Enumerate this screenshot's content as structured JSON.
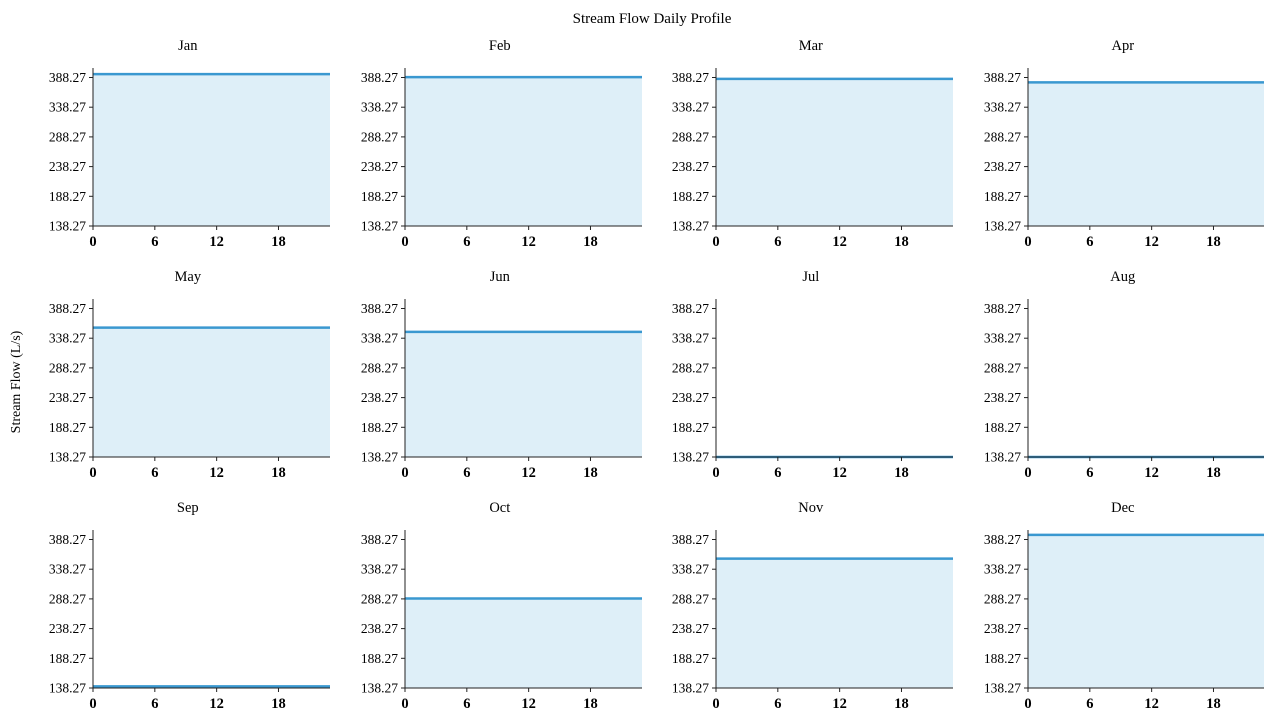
{
  "chart_data": {
    "type": "area",
    "title": "Stream Flow Daily Profile",
    "ylabel": "Stream Flow (L/s)",
    "xlabel": "",
    "x_ticks": [
      0,
      6,
      12,
      18
    ],
    "xlim": [
      0,
      23
    ],
    "y_ticks": [
      "138.27",
      "188.27",
      "238.27",
      "288.27",
      "338.27",
      "388.27"
    ],
    "ylim": [
      138.27,
      400
    ],
    "grid": false,
    "line_color": "#3a98d0",
    "fill_color": "#deeff8",
    "panels": [
      {
        "name": "Jan",
        "value": 394
      },
      {
        "name": "Feb",
        "value": 389
      },
      {
        "name": "Mar",
        "value": 386
      },
      {
        "name": "Apr",
        "value": 380
      },
      {
        "name": "May",
        "value": 356
      },
      {
        "name": "Jun",
        "value": 349
      },
      {
        "name": "Jul",
        "value": 138.27
      },
      {
        "name": "Aug",
        "value": 138.27
      },
      {
        "name": "Sep",
        "value": 141
      },
      {
        "name": "Oct",
        "value": 289
      },
      {
        "name": "Nov",
        "value": 356
      },
      {
        "name": "Dec",
        "value": 396
      }
    ]
  }
}
